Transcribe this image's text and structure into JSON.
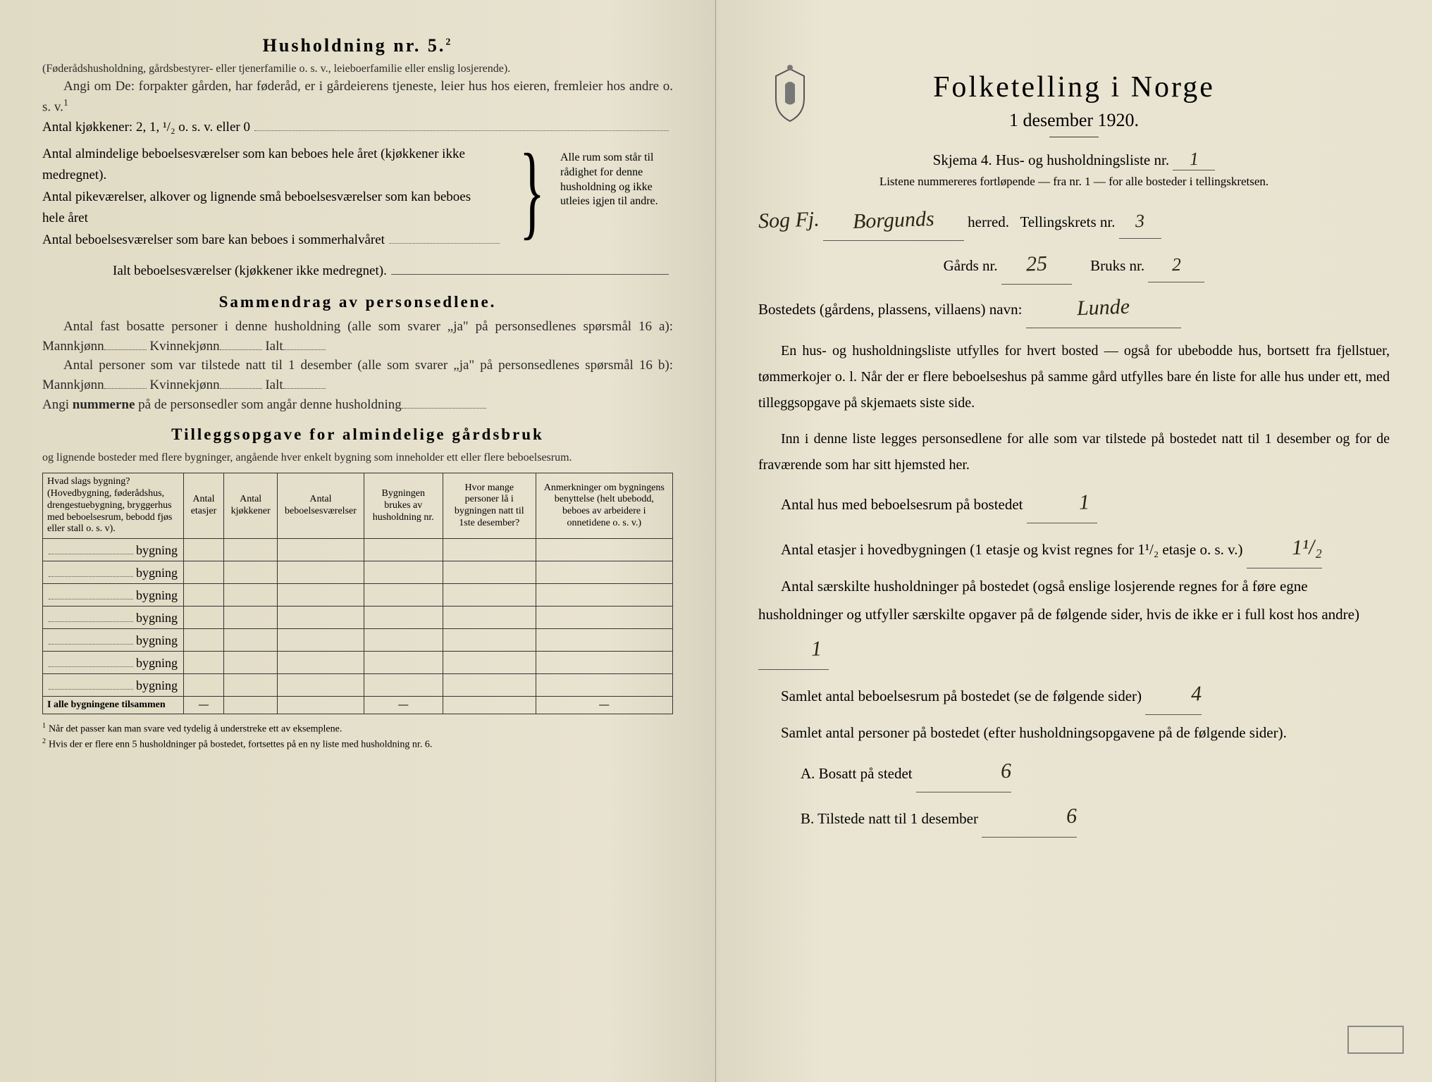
{
  "left": {
    "h5_title": "Husholdning nr. 5.",
    "h5_sup": "2",
    "h5_p1": "(Føderådshusholdning, gårdsbestyrer- eller tjenerfamilie o. s. v., leieboerfamilie eller enslig losjerende).",
    "h5_p2": "Angi om De: forpakter gården, har føderåd, er i gårdeierens tjeneste, leier hus hos eieren, fremleier hos andre o. s. v.",
    "h5_p2_sup": "1",
    "kitchen_line": "Antal kjøkkener: 2, 1, ¹/₂ o. s. v. eller 0",
    "rooms": [
      "Antal almindelige beboelsesværelser som kan beboes hele året (kjøkkener ikke medregnet).",
      "Antal pikeværelser, alkover og lignende små beboelsesværelser som kan beboes hele året",
      "Antal beboelsesværelser som bare kan beboes i sommerhalvåret"
    ],
    "brace_text": "Alle rum som står til rådighet for denne husholdning og ikke utleies igjen til andre.",
    "ialt_line": "Ialt beboelsesværelser (kjøkkener ikke medregnet).",
    "sammendrag_title": "Sammendrag av personsedlene.",
    "s_p1a": "Antal fast bosatte personer i denne husholdning (alle som svarer „ja\" på personsedlenes spørsmål 16 a): Mannkjønn",
    "s_kvinne": "Kvinnekjønn",
    "s_ialt": "Ialt",
    "s_p1b": "Antal personer som var tilstede natt til 1 desember (alle som svarer „ja\" på personsedlenes spørsmål 16 b): Mannkjønn",
    "s_p2_a": "Angi ",
    "s_p2_b": "nummerne",
    "s_p2_c": " på de personsedler som angår denne husholdning",
    "tillegg_title": "Tilleggsopgave for almindelige gårdsbruk",
    "tillegg_sub": "og lignende bosteder med flere bygninger, angående hver enkelt bygning som inneholder ett eller flere beboelsesrum.",
    "table": {
      "headers": [
        "Hvad slags bygning?\n(Hovedbygning, føderådshus, drengestuebygning, bryggerhus med beboelsesrum, bebodd fjøs eller stall o. s. v).",
        "Antal etasjer",
        "Antal kjøkkener",
        "Antal beboelsesværelser",
        "Bygningen brukes av husholdning nr.",
        "Hvor mange personer lå i bygningen natt til 1ste desember?",
        "Anmerkninger om bygningens benyttelse (helt ubebodd, beboes av arbeidere i onnetidene o. s. v.)"
      ],
      "row_label": "bygning",
      "row_count": 7,
      "footer": "I alle bygningene tilsammen"
    },
    "footnote1": "Når det passer kan man svare ved tydelig å understreke ett av eksemplene.",
    "footnote2": "Hvis der er flere enn 5 husholdninger på bostedet, fortsettes på en ny liste med husholdning nr. 6."
  },
  "right": {
    "title": "Folketelling i Norge",
    "date": "1 desember 1920.",
    "skjema": "Skjema 4. Hus- og husholdningsliste nr.",
    "skjema_val": "1",
    "listene": "Listene nummereres fortløpende — fra nr. 1 — for alle bosteder i tellingskretsen.",
    "sog_label": "Sog Fj.",
    "herred_val": "Borgunds",
    "herred_suffix": "herred.",
    "tellingskrets": "Tellingskrets nr.",
    "tellingskrets_val": "3",
    "gards": "Gårds nr.",
    "gards_val": "25",
    "bruks": "Bruks nr.",
    "bruks_val": "2",
    "bosted_label": "Bostedets (gårdens, plassens, villaens) navn:",
    "bosted_val": "Lunde",
    "body1": "En hus- og husholdningsliste utfylles for hvert bosted — også for ubebodde hus, bortsett fra fjellstuer, tømmerkojer o. l. Når der er flere beboelseshus på samme gård utfylles bare én liste for alle hus under ett, med tilleggsopgave på skjemaets siste side.",
    "body2": "Inn i denne liste legges personsedlene for alle som var tilstede på bostedet natt til 1 desember og for de fraværende som har sitt hjemsted her.",
    "q1": "Antal hus med beboelsesrum på bostedet",
    "q1_val": "1",
    "q2a": "Antal etasjer i hovedbygningen (1 etasje og kvist regnes for 1¹/₂ etasje o. s. v.)",
    "q2_val": "1¹/₂",
    "q3": "Antal særskilte husholdninger på bostedet (også enslige losjerende regnes for å føre egne husholdninger og utfyller særskilte opgaver på de følgende sider, hvis de ikke er i full kost hos andre)",
    "q3_val": "1",
    "q4": "Samlet antal beboelsesrum på bostedet (se de følgende sider)",
    "q4_val": "4",
    "q5": "Samlet antal personer på bostedet (efter husholdningsopgavene på de følgende sider).",
    "qA": "A. Bosatt på stedet",
    "qA_val": "6",
    "qB": "B. Tilstede natt til 1 desember",
    "qB_val": "6"
  }
}
